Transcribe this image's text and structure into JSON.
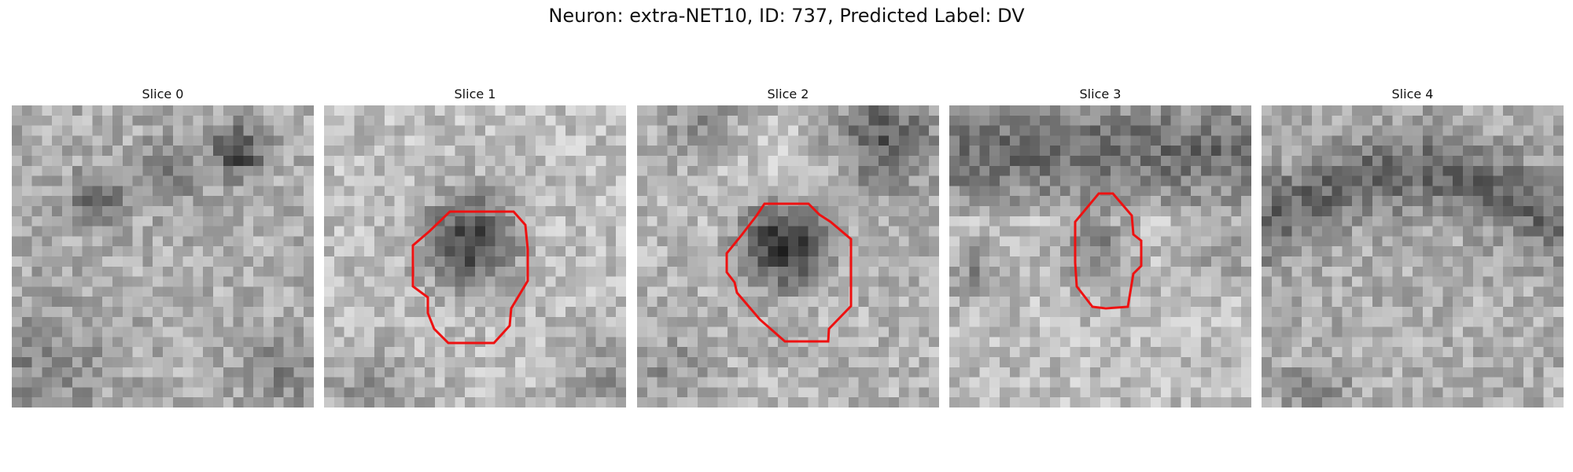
{
  "title": "Neuron: extra-NET10, ID: 737, Predicted Label: DV",
  "contour_color": "#ee1111",
  "slices": [
    {
      "label": "Slice 0",
      "has_contour": false
    },
    {
      "label": "Slice 1",
      "has_contour": true
    },
    {
      "label": "Slice 2",
      "has_contour": true
    },
    {
      "label": "Slice 3",
      "has_contour": true
    },
    {
      "label": "Slice 4",
      "has_contour": false
    }
  ]
}
